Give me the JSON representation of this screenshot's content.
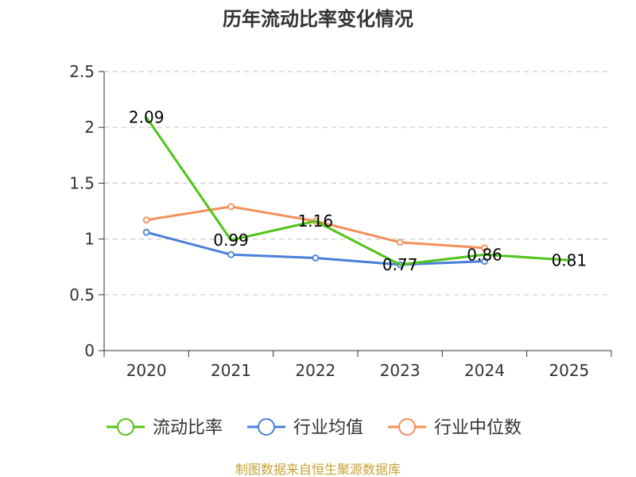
{
  "chart_data": {
    "type": "line",
    "title": "历年流动比率变化情况",
    "categories": [
      "2020",
      "2021",
      "2022",
      "2023",
      "2024",
      "2025"
    ],
    "ylim": [
      0,
      2.5
    ],
    "yticks": [
      "0",
      "0.5",
      "1",
      "1.5",
      "2",
      "2.5"
    ],
    "grid": true,
    "legend_position": "bottom",
    "series": [
      {
        "name": "流动比率",
        "color": "#52c41a",
        "values": [
          2.09,
          0.99,
          1.16,
          0.77,
          0.86,
          0.81
        ],
        "labels": [
          "2.09",
          "0.99",
          "1.16",
          "0.77",
          "0.86",
          "0.81"
        ]
      },
      {
        "name": "行业均值",
        "color": "#4a7fd8",
        "values": [
          1.06,
          0.86,
          0.83,
          0.77,
          0.8,
          null
        ]
      },
      {
        "name": "行业中位数",
        "color": "#f5905a",
        "values": [
          1.17,
          1.29,
          1.16,
          0.97,
          0.92,
          null
        ]
      }
    ],
    "source": "制图数据来自恒生聚源数据库"
  }
}
